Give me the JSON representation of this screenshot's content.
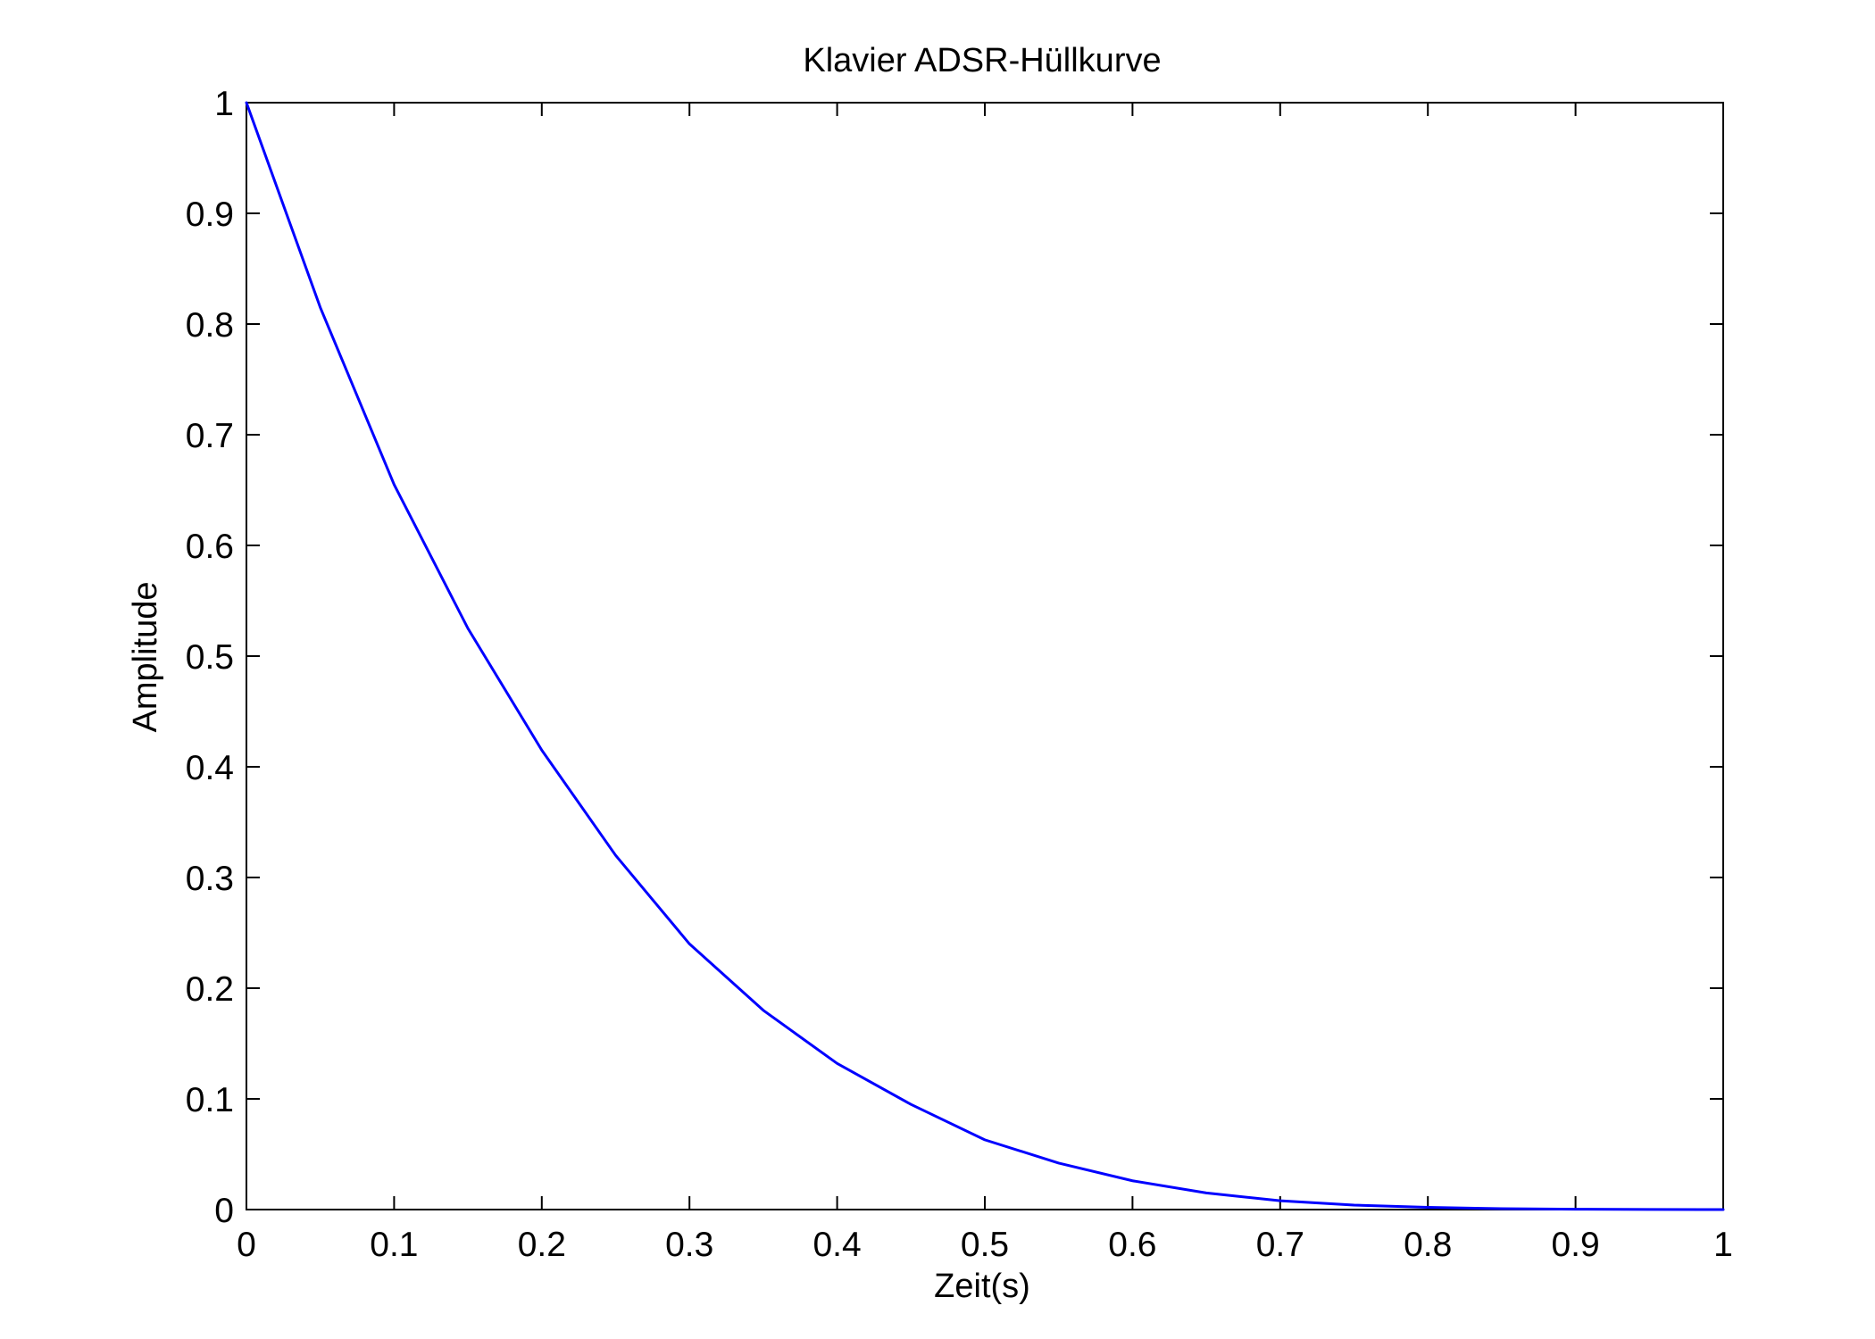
{
  "chart_data": {
    "type": "line",
    "title": "Klavier ADSR-Hüllkurve",
    "xlabel": "Zeit(s)",
    "ylabel": "Amplitude",
    "xlim": [
      0,
      1
    ],
    "ylim": [
      0,
      1
    ],
    "grid": false,
    "xticks": [
      "0",
      "0.1",
      "0.2",
      "0.3",
      "0.4",
      "0.5",
      "0.6",
      "0.7",
      "0.8",
      "0.9",
      "1"
    ],
    "yticks": [
      "0",
      "0.1",
      "0.2",
      "0.3",
      "0.4",
      "0.5",
      "0.6",
      "0.7",
      "0.8",
      "0.9",
      "1"
    ],
    "series": [
      {
        "color": "#0000ff",
        "x": [
          0,
          0.05,
          0.1,
          0.15,
          0.2,
          0.25,
          0.3,
          0.35,
          0.4,
          0.45,
          0.5,
          0.55,
          0.6,
          0.65,
          0.7,
          0.75,
          0.8,
          0.85,
          0.9,
          0.95,
          1
        ],
        "y": [
          1,
          0.815,
          0.655,
          0.525,
          0.415,
          0.32,
          0.24,
          0.18,
          0.132,
          0.095,
          0.063,
          0.042,
          0.026,
          0.015,
          0.008,
          0.004,
          0.002,
          0.0008,
          0.0003,
          0.0001,
          0
        ]
      }
    ]
  }
}
